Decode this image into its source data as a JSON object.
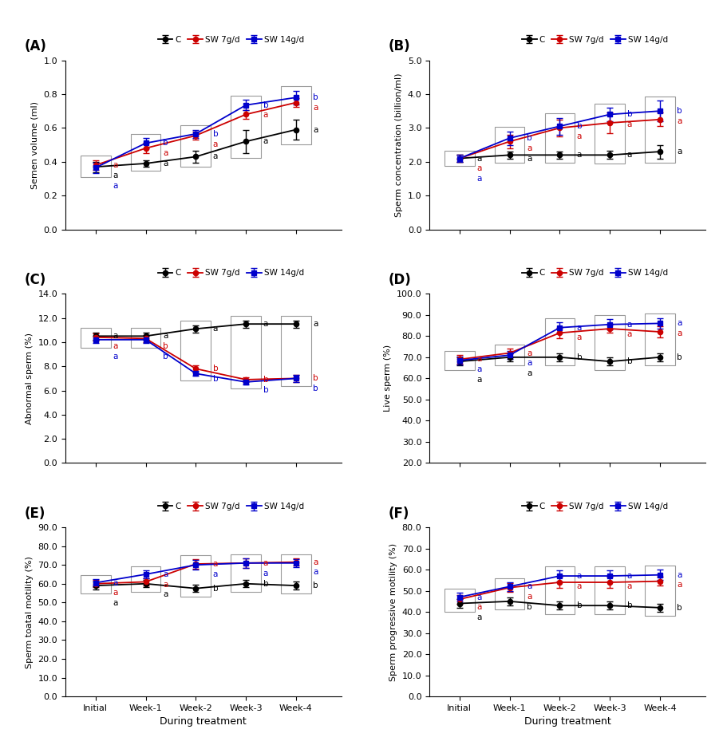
{
  "chart_data": [
    {
      "type": "line",
      "title": "(A)",
      "y_label": "Semen volume (ml)",
      "categories": [
        "Initial",
        "Week-1",
        "Week-2",
        "Week-3",
        "Week-4"
      ],
      "ylim": [
        0.0,
        1.0
      ],
      "yticks": [
        {
          "value": 0,
          "label": "0.0"
        },
        0.2,
        0.4,
        0.6,
        0.8,
        {
          "value": 1,
          "label": "1.0"
        }
      ],
      "tick_labels": "y",
      "legend": "upper center",
      "series": [
        {
          "name": "C",
          "color": "#000000",
          "marker": "o",
          "values": [
            0.37,
            0.39,
            0.43,
            0.52,
            0.59
          ],
          "errors": [
            0.03,
            0.02,
            0.035,
            0.07,
            0.06
          ],
          "annotations": [
            "a",
            "a",
            "a",
            "a",
            "a"
          ]
        },
        {
          "name": "SW 7g/d",
          "color": "#cc0000",
          "marker": "o",
          "values": [
            0.38,
            0.48,
            0.555,
            0.68,
            0.75
          ],
          "errors": [
            0.03,
            0.03,
            0.025,
            0.025,
            0.025
          ],
          "annotations": [
            "a",
            "a",
            "a",
            "a",
            "a"
          ]
        },
        {
          "name": "SW 14g/d",
          "color": "#0000cc",
          "marker": "s",
          "values": [
            0.365,
            0.51,
            0.565,
            0.735,
            0.78
          ],
          "errors": [
            0.03,
            0.03,
            0.025,
            0.03,
            0.04
          ],
          "annotations": [
            "a",
            "b",
            "b",
            "b",
            "b"
          ]
        }
      ]
    },
    {
      "type": "line",
      "title": "(B)",
      "y_label": "Sperm concentration (billion/ml)",
      "categories": [
        "Initial",
        "Week-1",
        "Week-2",
        "Week-3",
        "Week-4"
      ],
      "ylim": [
        0.0,
        5.0
      ],
      "yticks": [
        {
          "value": 0,
          "label": "0.0"
        },
        {
          "value": 1,
          "label": "1.0"
        },
        {
          "value": 2,
          "label": "2.0"
        },
        {
          "value": 3,
          "label": "3.0"
        },
        {
          "value": 4,
          "label": "4.0"
        },
        {
          "value": 5,
          "label": "5.0"
        }
      ],
      "tick_labels": "y",
      "legend": "upper center",
      "series": [
        {
          "name": "C",
          "color": "#000000",
          "marker": "o",
          "values": [
            2.1,
            2.2,
            2.2,
            2.2,
            2.3
          ],
          "errors": [
            0.1,
            0.1,
            0.1,
            0.12,
            0.2
          ],
          "annotations": [
            "a",
            "a",
            "a",
            "a",
            "a"
          ]
        },
        {
          "name": "SW 7g/d",
          "color": "#cc0000",
          "marker": "o",
          "values": [
            2.1,
            2.6,
            3.0,
            3.15,
            3.25
          ],
          "errors": [
            0.1,
            0.2,
            0.25,
            0.3,
            0.2
          ],
          "annotations": [
            "a",
            "a",
            "a",
            "a",
            "a"
          ]
        },
        {
          "name": "SW 14g/d",
          "color": "#0000cc",
          "marker": "s",
          "values": [
            2.1,
            2.7,
            3.05,
            3.4,
            3.5
          ],
          "errors": [
            0.1,
            0.2,
            0.25,
            0.2,
            0.3
          ],
          "annotations": [
            "a",
            "b",
            "b",
            "b",
            "b"
          ]
        }
      ]
    },
    {
      "type": "line",
      "title": "(C)",
      "y_label": "Abnormal sperm (%)",
      "categories": [
        "Initial",
        "Week-1",
        "Week-2",
        "Week-3",
        "Week-4"
      ],
      "ylim": [
        0.0,
        14.0
      ],
      "yticks": [
        {
          "value": 0,
          "label": "0.0"
        },
        {
          "value": 2,
          "label": "2.0"
        },
        {
          "value": 4,
          "label": "4.0"
        },
        {
          "value": 6,
          "label": "6.0"
        },
        {
          "value": 8,
          "label": "8.0"
        },
        {
          "value": 10,
          "label": "10.0"
        },
        {
          "value": 12,
          "label": "12.0"
        },
        {
          "value": 14,
          "label": "14.0"
        }
      ],
      "tick_labels": "y",
      "legend": "upper center",
      "series": [
        {
          "name": "C",
          "color": "#000000",
          "marker": "o",
          "values": [
            10.5,
            10.5,
            11.1,
            11.5,
            11.5
          ],
          "errors": [
            0.3,
            0.3,
            0.3,
            0.3,
            0.3
          ],
          "annotations": [
            "a",
            "a",
            "a",
            "a",
            "a"
          ]
        },
        {
          "name": "SW 7g/d",
          "color": "#cc0000",
          "marker": "o",
          "values": [
            10.4,
            10.3,
            7.8,
            6.9,
            7.0
          ],
          "errors": [
            0.3,
            0.3,
            0.3,
            0.2,
            0.3
          ],
          "annotations": [
            "a",
            "b",
            "b",
            "b",
            "b"
          ]
        },
        {
          "name": "SW 14g/d",
          "color": "#0000cc",
          "marker": "s",
          "values": [
            10.2,
            10.2,
            7.4,
            6.7,
            7.0
          ],
          "errors": [
            0.3,
            0.3,
            0.2,
            0.2,
            0.3
          ],
          "annotations": [
            "a",
            "b",
            "b",
            "b",
            "b"
          ]
        }
      ]
    },
    {
      "type": "line",
      "title": "(D)",
      "y_label": "Live sperm (%)",
      "categories": [
        "Initial",
        "Week-1",
        "Week-2",
        "Week-3",
        "Week-4"
      ],
      "ylim": [
        20.0,
        100.0
      ],
      "yticks": [
        {
          "value": 20,
          "label": "20.0"
        },
        {
          "value": 30,
          "label": "30.0"
        },
        {
          "value": 40,
          "label": "40.0"
        },
        {
          "value": 50,
          "label": "50.0"
        },
        {
          "value": 60,
          "label": "60.0"
        },
        {
          "value": 70,
          "label": "70.0"
        },
        {
          "value": 80,
          "label": "80.0"
        },
        {
          "value": 90,
          "label": "90.0"
        },
        {
          "value": 100,
          "label": "100.0"
        }
      ],
      "tick_labels": "y",
      "legend": "upper center",
      "series": [
        {
          "name": "C",
          "color": "#000000",
          "marker": "o",
          "values": [
            68.0,
            70.0,
            70.0,
            68.0,
            70.0
          ],
          "errors": [
            2.0,
            2.0,
            2.0,
            2.0,
            2.0
          ],
          "annotations": [
            "a",
            "a",
            "b",
            "b",
            "b"
          ]
        },
        {
          "name": "SW 7g/d",
          "color": "#cc0000",
          "marker": "o",
          "values": [
            69.0,
            72.0,
            81.5,
            83.5,
            82.0
          ],
          "errors": [
            2.0,
            2.0,
            2.5,
            2.0,
            2.5
          ],
          "annotations": [
            "a",
            "a",
            "a",
            "a",
            "a"
          ]
        },
        {
          "name": "SW 14g/d",
          "color": "#0000cc",
          "marker": "s",
          "values": [
            68.5,
            71.0,
            84.0,
            85.5,
            86.0
          ],
          "errors": [
            2.0,
            2.0,
            2.5,
            2.5,
            2.5
          ],
          "annotations": [
            "a",
            "a",
            "a",
            "a",
            "a"
          ]
        }
      ]
    },
    {
      "type": "line",
      "title": "(E)",
      "y_label": "Sperm toatal motility (%)",
      "x_label": "During treatment",
      "categories": [
        "Initial",
        "Week-1",
        "Week-2",
        "Week-3",
        "Week-4"
      ],
      "ylim": [
        0.0,
        90.0
      ],
      "yticks": [
        {
          "value": 0,
          "label": "0.0"
        },
        {
          "value": 10,
          "label": "10.0"
        },
        {
          "value": 20,
          "label": "20.0"
        },
        {
          "value": 30,
          "label": "30.0"
        },
        {
          "value": 40,
          "label": "40.0"
        },
        {
          "value": 50,
          "label": "50.0"
        },
        {
          "value": 60,
          "label": "60.0"
        },
        {
          "value": 70,
          "label": "70.0"
        },
        {
          "value": 80,
          "label": "80.0"
        },
        {
          "value": 90,
          "label": "90.0"
        }
      ],
      "legend": "upper center",
      "series": [
        {
          "name": "C",
          "color": "#000000",
          "marker": "o",
          "values": [
            59.0,
            60.0,
            57.5,
            60.0,
            59.0
          ],
          "errors": [
            2.0,
            2.0,
            2.0,
            2.0,
            2.0
          ],
          "annotations": [
            "a",
            "a",
            "b",
            "b",
            "b"
          ]
        },
        {
          "name": "SW 7g/d",
          "color": "#cc0000",
          "marker": "o",
          "values": [
            60.0,
            61.0,
            70.5,
            71.0,
            71.5
          ],
          "errors": [
            2.0,
            2.0,
            2.5,
            2.5,
            2.0
          ],
          "annotations": [
            "a",
            "a",
            "a",
            "a",
            "a"
          ]
        },
        {
          "name": "SW 14g/d",
          "color": "#0000cc",
          "marker": "s",
          "values": [
            60.5,
            65.0,
            70.0,
            71.0,
            71.0
          ],
          "errors": [
            2.0,
            2.0,
            2.5,
            2.5,
            2.0
          ],
          "annotations": [
            "a",
            "a",
            "a",
            "a",
            "a"
          ]
        }
      ]
    },
    {
      "type": "line",
      "title": "(F)",
      "y_label": "Sperm progressive motility (%)",
      "x_label": "During treatment",
      "categories": [
        "Initial",
        "Week-1",
        "Week-2",
        "Week-3",
        "Week-4"
      ],
      "ylim": [
        0.0,
        80.0
      ],
      "yticks": [
        {
          "value": 0,
          "label": "0.0"
        },
        {
          "value": 10,
          "label": "10.0"
        },
        {
          "value": 20,
          "label": "20.0"
        },
        {
          "value": 30,
          "label": "30.0"
        },
        {
          "value": 40,
          "label": "40.0"
        },
        {
          "value": 50,
          "label": "50.0"
        },
        {
          "value": 60,
          "label": "60.0"
        },
        {
          "value": 70,
          "label": "70.0"
        },
        {
          "value": 80,
          "label": "80.0"
        }
      ],
      "legend": "upper center",
      "series": [
        {
          "name": "C",
          "color": "#000000",
          "marker": "o",
          "values": [
            44.0,
            45.0,
            43.0,
            43.0,
            42.0
          ],
          "errors": [
            2.0,
            2.0,
            2.0,
            2.0,
            2.0
          ],
          "annotations": [
            "a",
            "b",
            "b",
            "b",
            "b"
          ]
        },
        {
          "name": "SW 7g/d",
          "color": "#cc0000",
          "marker": "o",
          "values": [
            46.0,
            51.5,
            54.0,
            54.0,
            54.5
          ],
          "errors": [
            2.0,
            2.0,
            2.5,
            2.5,
            2.0
          ],
          "annotations": [
            "a",
            "a",
            "a",
            "a",
            "a"
          ]
        },
        {
          "name": "SW 14g/d",
          "color": "#0000cc",
          "marker": "s",
          "values": [
            47.0,
            52.0,
            57.0,
            57.0,
            57.5
          ],
          "errors": [
            2.0,
            2.0,
            2.5,
            2.5,
            2.5
          ],
          "annotations": [
            "a",
            "a",
            "a",
            "a",
            "a"
          ]
        }
      ]
    }
  ]
}
